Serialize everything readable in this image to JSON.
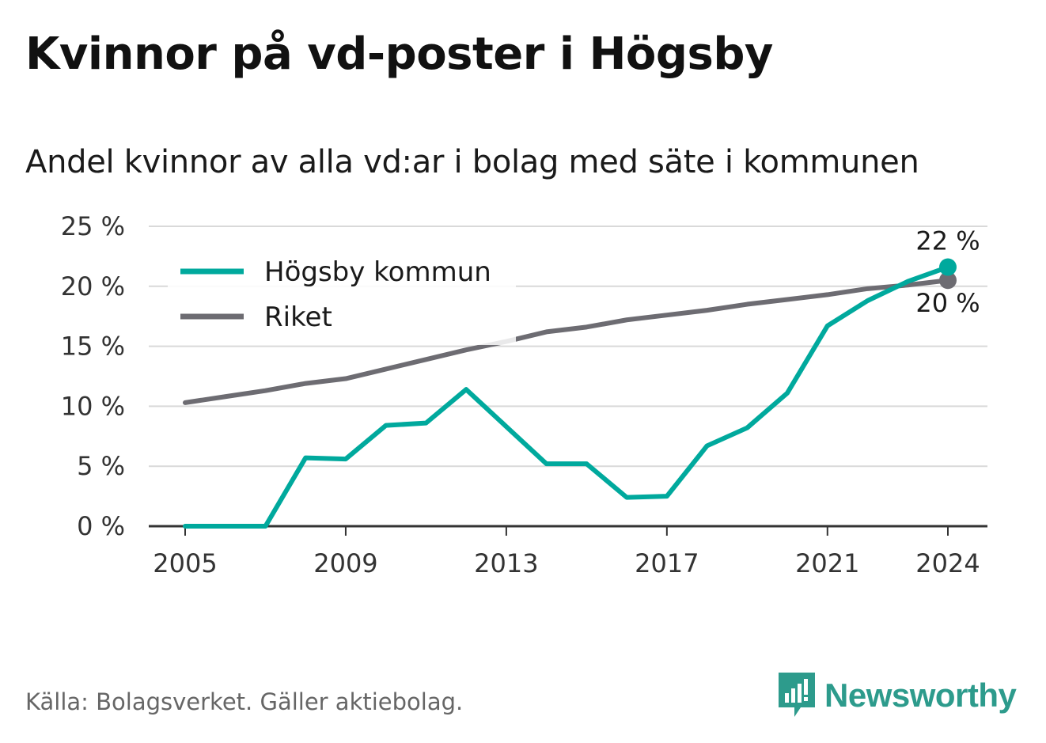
{
  "title": "Kvinnor på vd-poster i Högsby",
  "subtitle": "Andel kvinnor av alla vd:ar i bolag med säte i kommunen",
  "source": "Källa: Bolagsverket. Gäller aktiebolag.",
  "brand": "Newsworthy",
  "colors": {
    "hogsby": "#00a99d",
    "riket": "#6d6c72",
    "grid": "#d9d9d9",
    "axis": "#333333"
  },
  "chart_data": {
    "type": "line",
    "x": [
      2005,
      2006,
      2007,
      2008,
      2009,
      2010,
      2011,
      2012,
      2013,
      2014,
      2015,
      2016,
      2017,
      2018,
      2019,
      2020,
      2021,
      2022,
      2023,
      2024
    ],
    "x_ticks": [
      2005,
      2009,
      2013,
      2017,
      2021,
      2024
    ],
    "y_ticks": [
      0,
      5,
      10,
      15,
      20,
      25
    ],
    "y_tick_labels": [
      "0 %",
      "5 %",
      "10 %",
      "15 %",
      "20 %",
      "25 %"
    ],
    "ylim": [
      0,
      25
    ],
    "grid": true,
    "legend_position": "top-left",
    "series": [
      {
        "name": "Högsby kommun",
        "color": "#00a99d",
        "values": [
          0,
          0,
          0,
          5.7,
          5.6,
          8.4,
          8.6,
          11.4,
          8.3,
          5.2,
          5.2,
          2.4,
          2.5,
          6.7,
          8.2,
          11.1,
          16.7,
          18.8,
          20.4,
          21.6
        ],
        "end_label": "22 %"
      },
      {
        "name": "Riket",
        "color": "#6d6c72",
        "values": [
          10.3,
          10.8,
          11.3,
          11.9,
          12.3,
          13.1,
          13.9,
          14.7,
          15.4,
          16.2,
          16.6,
          17.2,
          17.6,
          18.0,
          18.5,
          18.9,
          19.3,
          19.8,
          20.1,
          20.5
        ],
        "end_label": "20 %"
      }
    ]
  }
}
